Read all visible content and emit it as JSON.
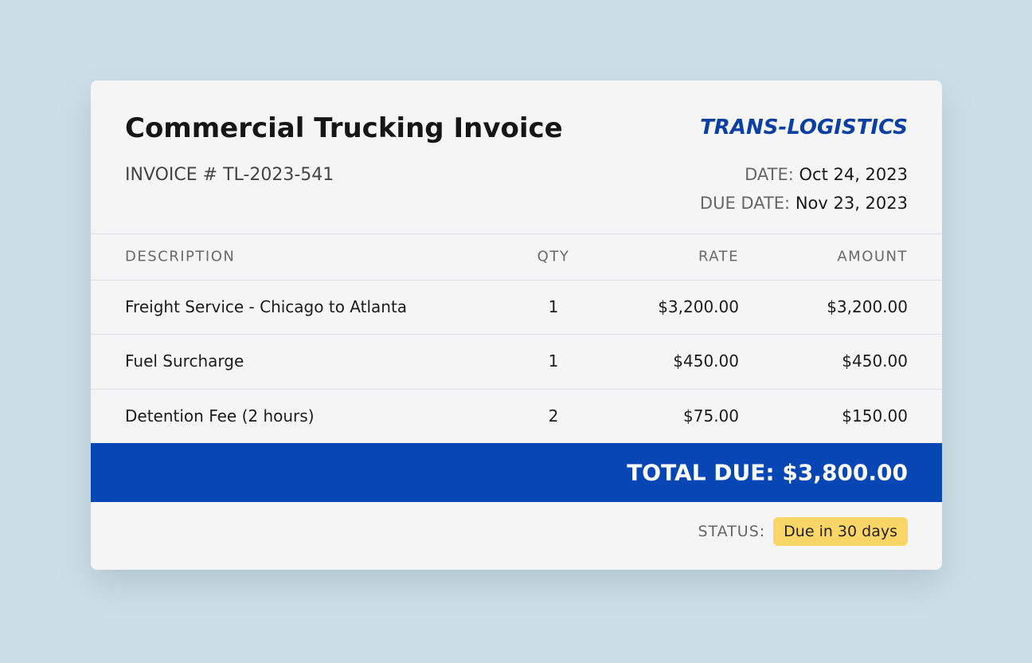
{
  "header": {
    "title": "Commercial Trucking Invoice",
    "brand": "TRANS-LOGISTICS",
    "invoice_number": "INVOICE # TL-2023-541",
    "date_label": "DATE:",
    "date": "Oct 24, 2023",
    "due_date_label": "DUE DATE:",
    "due_date": "Nov 23, 2023"
  },
  "table": {
    "columns": [
      "DESCRIPTION",
      "QTY",
      "RATE",
      "AMOUNT"
    ],
    "rows": [
      [
        "Freight Service - Chicago to Atlanta",
        "1",
        "$3,200.00",
        "$3,200.00"
      ],
      [
        "Fuel Surcharge",
        "1",
        "$450.00",
        "$450.00"
      ],
      [
        "Detention Fee (2 hours)",
        "2",
        "$75.00",
        "$150.00"
      ]
    ]
  },
  "total": {
    "label": "TOTAL DUE:",
    "value": "$3,800.00"
  },
  "status": {
    "label": "STATUS:",
    "value": "Due in 30 days"
  }
}
